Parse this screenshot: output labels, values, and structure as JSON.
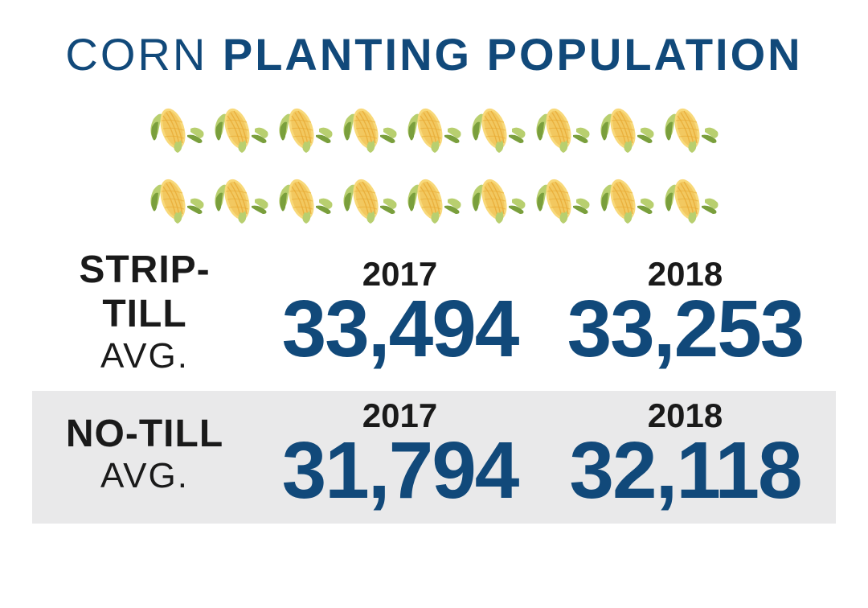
{
  "title": {
    "light": "CORN ",
    "bold": "PLANTING POPULATION"
  },
  "colors": {
    "primary_blue": "#11497a",
    "text_dark": "#1a1a1a",
    "background_white": "#ffffff",
    "row_alt_bg": "#e9e9ea",
    "corn_yellow_light": "#f8d97a",
    "corn_yellow_dark": "#e8a830",
    "husk_green_light": "#b8cf6f",
    "husk_green_dark": "#7a9f3c"
  },
  "corn_grid": {
    "rows": 2,
    "cols": 9
  },
  "data_rows": [
    {
      "label_main": "STRIP-TILL",
      "label_sub": "AVG.",
      "alt_bg": false,
      "years": [
        {
          "year": "2017",
          "value": "33,494"
        },
        {
          "year": "2018",
          "value": "33,253"
        }
      ]
    },
    {
      "label_main": "NO-TILL",
      "label_sub": "AVG.",
      "alt_bg": true,
      "years": [
        {
          "year": "2017",
          "value": "31,794"
        },
        {
          "year": "2018",
          "value": "32,118"
        }
      ]
    }
  ],
  "typography": {
    "title_fontsize": 56,
    "label_main_fontsize": 48,
    "label_sub_fontsize": 44,
    "year_fontsize": 42,
    "value_fontsize": 100
  }
}
